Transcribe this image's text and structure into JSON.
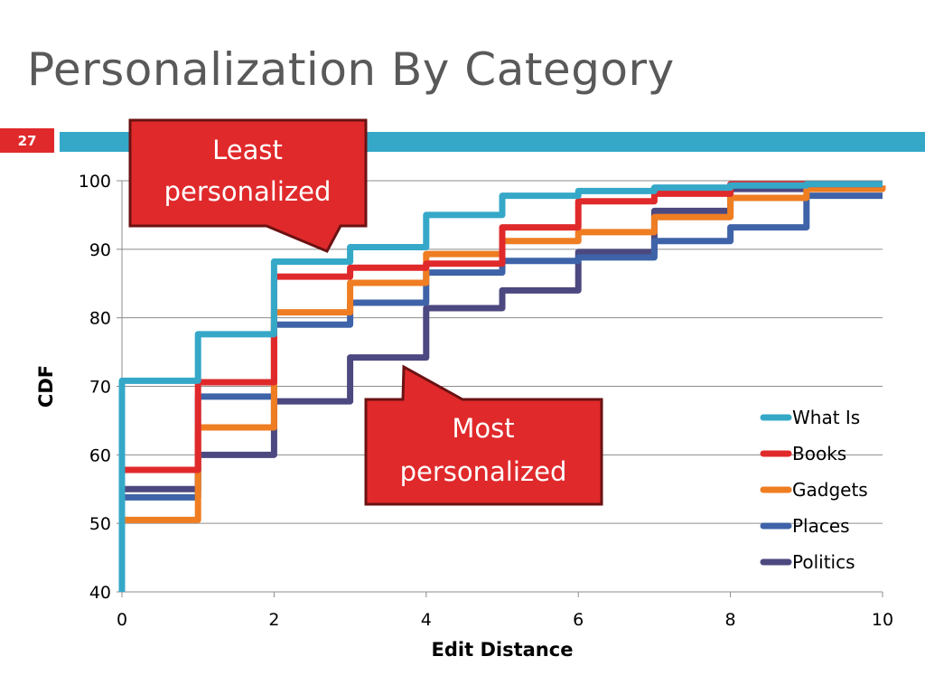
{
  "slide": {
    "title": "Personalization By Category",
    "page_number": "27",
    "accent_red": "#e0292b",
    "accent_blue": "#35a8c8"
  },
  "callouts": {
    "least": {
      "line1": "Least",
      "line2": "personalized"
    },
    "most": {
      "line1": "Most",
      "line2": "personalized"
    }
  },
  "chart_data": {
    "type": "line",
    "step": true,
    "xlabel": "Edit Distance",
    "ylabel": "CDF",
    "xlim": [
      0,
      10
    ],
    "ylim": [
      40,
      100
    ],
    "xticks": [
      0,
      2,
      4,
      6,
      8,
      10
    ],
    "yticks": [
      40,
      50,
      60,
      70,
      80,
      90,
      100
    ],
    "grid": "horizontal",
    "legend_position": "right",
    "x": [
      0,
      1,
      2,
      3,
      4,
      5,
      6,
      7,
      8,
      9,
      10
    ],
    "series": [
      {
        "name": "What Is",
        "color": "#35a8c8",
        "values": [
          70.8,
          77.6,
          88.2,
          90.3,
          95.0,
          97.8,
          98.5,
          99.0,
          99.3,
          99.5,
          99.5
        ]
      },
      {
        "name": "Books",
        "color": "#e0292b",
        "values": [
          57.8,
          70.6,
          86.0,
          87.3,
          87.9,
          93.2,
          97.0,
          98.1,
          99.5,
          99.5,
          99.5
        ]
      },
      {
        "name": "Gadgets",
        "color": "#ef7d22",
        "values": [
          50.5,
          64.0,
          80.8,
          85.1,
          89.3,
          91.2,
          92.5,
          94.7,
          97.5,
          98.8,
          99.3
        ]
      },
      {
        "name": "Places",
        "color": "#3e63a8",
        "values": [
          53.8,
          68.5,
          79.0,
          82.2,
          86.6,
          88.3,
          88.8,
          91.2,
          93.2,
          97.8,
          97.8
        ]
      },
      {
        "name": "Politics",
        "color": "#4c4880",
        "values": [
          55.0,
          60.0,
          67.8,
          74.2,
          81.4,
          84.0,
          89.6,
          95.6,
          98.8,
          99.2,
          99.2
        ]
      }
    ]
  }
}
